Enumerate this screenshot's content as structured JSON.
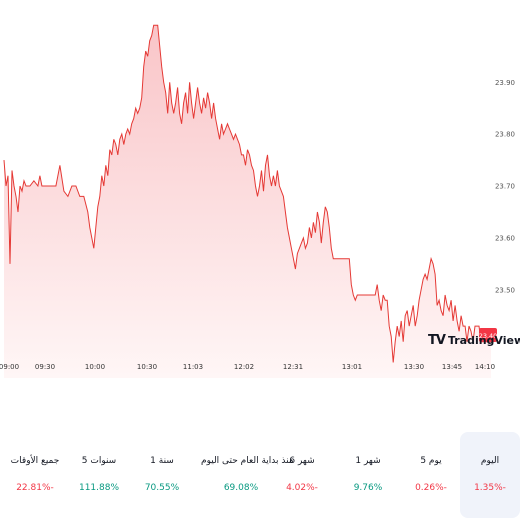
{
  "colors": {
    "line": "#e53935",
    "fill_top": "#f9c5c8",
    "fill_bottom": "#fff6f6",
    "positive": "#089981",
    "negative": "#f23645",
    "tag_bg": "#f23645"
  },
  "chart_data": {
    "type": "area",
    "y_ticks": [
      "23.90",
      "23.80",
      "23.70",
      "23.60",
      "23.50"
    ],
    "x_ticks": [
      "09:00",
      "09:30",
      "10:00",
      "10:30",
      "11:03",
      "12:02",
      "12:31",
      "13:01",
      "13:30",
      "13:45",
      "14:10"
    ],
    "current_price": "23.40",
    "ylim": [
      23.33,
      24.02
    ],
    "series": [
      {
        "points": [
          [
            0,
            23.75
          ],
          [
            2,
            23.7
          ],
          [
            4,
            23.72
          ],
          [
            6,
            23.55
          ],
          [
            8,
            23.73
          ],
          [
            10,
            23.7
          ],
          [
            12,
            23.68
          ],
          [
            14,
            23.65
          ],
          [
            16,
            23.7
          ],
          [
            18,
            23.69
          ],
          [
            20,
            23.71
          ],
          [
            22,
            23.7
          ],
          [
            26,
            23.7
          ],
          [
            30,
            23.71
          ],
          [
            34,
            23.7
          ],
          [
            36,
            23.72
          ],
          [
            38,
            23.7
          ],
          [
            40,
            23.7
          ],
          [
            44,
            23.7
          ],
          [
            48,
            23.7
          ],
          [
            52,
            23.7
          ],
          [
            56,
            23.74
          ],
          [
            60,
            23.69
          ],
          [
            64,
            23.68
          ],
          [
            68,
            23.7
          ],
          [
            72,
            23.7
          ],
          [
            76,
            23.68
          ],
          [
            80,
            23.68
          ],
          [
            84,
            23.65
          ],
          [
            86,
            23.62
          ],
          [
            88,
            23.6
          ],
          [
            90,
            23.58
          ],
          [
            92,
            23.62
          ],
          [
            94,
            23.66
          ],
          [
            96,
            23.68
          ],
          [
            98,
            23.72
          ],
          [
            100,
            23.7
          ],
          [
            102,
            23.74
          ],
          [
            104,
            23.72
          ],
          [
            106,
            23.77
          ],
          [
            108,
            23.76
          ],
          [
            110,
            23.79
          ],
          [
            112,
            23.78
          ],
          [
            114,
            23.76
          ],
          [
            116,
            23.79
          ],
          [
            118,
            23.8
          ],
          [
            120,
            23.78
          ],
          [
            122,
            23.8
          ],
          [
            124,
            23.81
          ],
          [
            126,
            23.8
          ],
          [
            128,
            23.82
          ],
          [
            130,
            23.83
          ],
          [
            132,
            23.85
          ],
          [
            134,
            23.84
          ],
          [
            136,
            23.85
          ],
          [
            138,
            23.87
          ],
          [
            140,
            23.93
          ],
          [
            142,
            23.96
          ],
          [
            144,
            23.95
          ],
          [
            146,
            23.98
          ],
          [
            148,
            23.99
          ],
          [
            150,
            24.01
          ],
          [
            152,
            24.01
          ],
          [
            154,
            24.01
          ],
          [
            156,
            23.97
          ],
          [
            158,
            23.93
          ],
          [
            160,
            23.9
          ],
          [
            162,
            23.88
          ],
          [
            164,
            23.84
          ],
          [
            166,
            23.9
          ],
          [
            168,
            23.86
          ],
          [
            170,
            23.84
          ],
          [
            172,
            23.86
          ],
          [
            174,
            23.89
          ],
          [
            176,
            23.84
          ],
          [
            178,
            23.82
          ],
          [
            180,
            23.86
          ],
          [
            182,
            23.88
          ],
          [
            184,
            23.84
          ],
          [
            186,
            23.9
          ],
          [
            188,
            23.86
          ],
          [
            190,
            23.83
          ],
          [
            192,
            23.86
          ],
          [
            194,
            23.89
          ],
          [
            196,
            23.86
          ],
          [
            198,
            23.84
          ],
          [
            200,
            23.87
          ],
          [
            202,
            23.85
          ],
          [
            204,
            23.88
          ],
          [
            206,
            23.86
          ],
          [
            208,
            23.83
          ],
          [
            210,
            23.86
          ],
          [
            212,
            23.83
          ],
          [
            214,
            23.81
          ],
          [
            216,
            23.79
          ],
          [
            218,
            23.82
          ],
          [
            220,
            23.8
          ],
          [
            222,
            23.81
          ],
          [
            224,
            23.82
          ],
          [
            226,
            23.81
          ],
          [
            228,
            23.8
          ],
          [
            230,
            23.79
          ],
          [
            232,
            23.8
          ],
          [
            234,
            23.79
          ],
          [
            236,
            23.78
          ],
          [
            238,
            23.76
          ],
          [
            240,
            23.76
          ],
          [
            242,
            23.74
          ],
          [
            244,
            23.77
          ],
          [
            246,
            23.76
          ],
          [
            248,
            23.74
          ],
          [
            250,
            23.73
          ],
          [
            252,
            23.7
          ],
          [
            254,
            23.68
          ],
          [
            256,
            23.7
          ],
          [
            258,
            23.73
          ],
          [
            260,
            23.69
          ],
          [
            262,
            23.74
          ],
          [
            264,
            23.76
          ],
          [
            266,
            23.72
          ],
          [
            268,
            23.7
          ],
          [
            270,
            23.72
          ],
          [
            272,
            23.7
          ],
          [
            274,
            23.73
          ],
          [
            276,
            23.7
          ],
          [
            278,
            23.69
          ],
          [
            280,
            23.68
          ],
          [
            282,
            23.65
          ],
          [
            284,
            23.62
          ],
          [
            286,
            23.6
          ],
          [
            288,
            23.58
          ],
          [
            290,
            23.56
          ],
          [
            292,
            23.54
          ],
          [
            294,
            23.57
          ],
          [
            296,
            23.58
          ],
          [
            298,
            23.59
          ],
          [
            300,
            23.6
          ],
          [
            302,
            23.58
          ],
          [
            304,
            23.59
          ],
          [
            306,
            23.62
          ],
          [
            308,
            23.6
          ],
          [
            310,
            23.63
          ],
          [
            312,
            23.61
          ],
          [
            314,
            23.65
          ],
          [
            316,
            23.63
          ],
          [
            318,
            23.59
          ],
          [
            320,
            23.63
          ],
          [
            322,
            23.66
          ],
          [
            324,
            23.65
          ],
          [
            326,
            23.62
          ],
          [
            328,
            23.58
          ],
          [
            330,
            23.56
          ],
          [
            334,
            23.56
          ],
          [
            338,
            23.56
          ],
          [
            342,
            23.56
          ],
          [
            346,
            23.56
          ],
          [
            348,
            23.51
          ],
          [
            350,
            23.49
          ],
          [
            352,
            23.48
          ],
          [
            354,
            23.49
          ],
          [
            356,
            23.49
          ],
          [
            360,
            23.49
          ],
          [
            364,
            23.49
          ],
          [
            368,
            23.49
          ],
          [
            372,
            23.49
          ],
          [
            374,
            23.51
          ],
          [
            376,
            23.48
          ],
          [
            378,
            23.46
          ],
          [
            380,
            23.49
          ],
          [
            382,
            23.48
          ],
          [
            384,
            23.48
          ],
          [
            386,
            23.43
          ],
          [
            388,
            23.41
          ],
          [
            390,
            23.36
          ],
          [
            392,
            23.4
          ],
          [
            394,
            23.43
          ],
          [
            396,
            23.41
          ],
          [
            398,
            23.44
          ],
          [
            400,
            23.4
          ],
          [
            402,
            23.45
          ],
          [
            404,
            23.46
          ],
          [
            406,
            23.43
          ],
          [
            408,
            23.45
          ],
          [
            410,
            23.47
          ],
          [
            412,
            23.43
          ],
          [
            414,
            23.45
          ],
          [
            416,
            23.48
          ],
          [
            418,
            23.5
          ],
          [
            420,
            23.52
          ],
          [
            422,
            23.53
          ],
          [
            424,
            23.52
          ],
          [
            426,
            23.54
          ],
          [
            428,
            23.56
          ],
          [
            430,
            23.55
          ],
          [
            432,
            23.53
          ],
          [
            434,
            23.47
          ],
          [
            436,
            23.48
          ],
          [
            438,
            23.46
          ],
          [
            440,
            23.45
          ],
          [
            442,
            23.49
          ],
          [
            444,
            23.47
          ],
          [
            446,
            23.46
          ],
          [
            448,
            23.48
          ],
          [
            450,
            23.44
          ],
          [
            452,
            23.47
          ],
          [
            454,
            23.44
          ],
          [
            456,
            23.42
          ],
          [
            458,
            23.45
          ],
          [
            460,
            23.43
          ],
          [
            462,
            23.43
          ],
          [
            464,
            23.4
          ],
          [
            466,
            23.43
          ],
          [
            468,
            23.42
          ],
          [
            470,
            23.4
          ],
          [
            472,
            23.43
          ],
          [
            474,
            23.43
          ],
          [
            476,
            23.43
          ],
          [
            478,
            23.4
          ],
          [
            480,
            23.4
          ],
          [
            484,
            23.4
          ],
          [
            488,
            23.4
          ]
        ]
      }
    ]
  },
  "periods": [
    {
      "label": "اليوم",
      "value": "1.35%-",
      "sign": "negative",
      "selected": true
    },
    {
      "label": "5 يوم",
      "value": "0.26%-",
      "sign": "negative",
      "selected": false
    },
    {
      "label": "1 شهر",
      "value": "9.76%",
      "sign": "positive",
      "selected": false
    },
    {
      "label": "6 شهر",
      "value": "4.02%-",
      "sign": "negative",
      "selected": false
    },
    {
      "label": "منذ بداية العام حتى اليوم",
      "value": "69.08%",
      "sign": "positive",
      "selected": false
    },
    {
      "label": "1 سنة",
      "value": "70.55%",
      "sign": "positive",
      "selected": false
    },
    {
      "label": "5 سنوات",
      "value": "111.88%",
      "sign": "positive",
      "selected": false
    },
    {
      "label": "جميع الأوقات",
      "value": "22.81%-",
      "sign": "negative",
      "selected": false
    }
  ]
}
